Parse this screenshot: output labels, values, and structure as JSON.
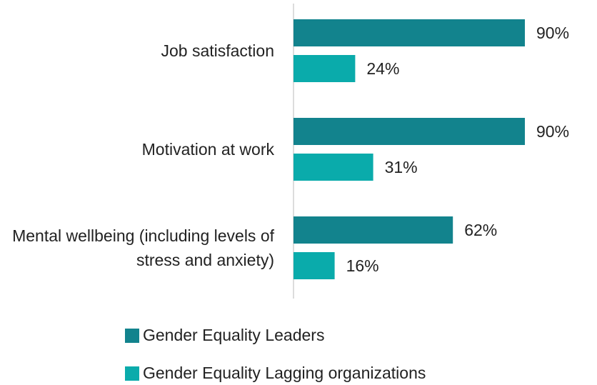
{
  "chart_data": {
    "type": "bar",
    "orientation": "horizontal",
    "categories": [
      "Job satisfaction",
      "Motivation at work",
      "Mental wellbeing (including levels of stress and anxiety)"
    ],
    "series": [
      {
        "name": "Gender Equality Leaders",
        "color": "#12838d",
        "values": [
          90,
          90,
          62
        ],
        "value_labels": [
          "90%",
          "90%",
          "62%"
        ]
      },
      {
        "name": "Gender Equality Lagging organizations",
        "color": "#0aabab",
        "values": [
          24,
          31,
          16
        ],
        "value_labels": [
          "24%",
          "31%",
          "16%"
        ]
      }
    ],
    "xlim": [
      0,
      100
    ]
  }
}
